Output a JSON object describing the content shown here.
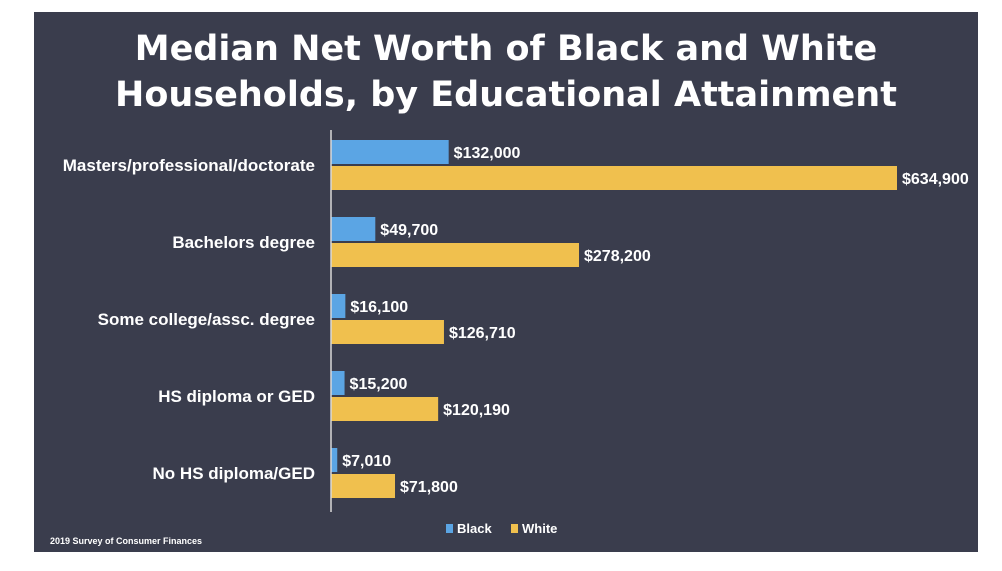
{
  "title_lines": [
    "Median Net Worth of Black and White",
    "Households, by Educational Attainment"
  ],
  "source": "2019 Survey of Consumer Finances",
  "colors": {
    "background": "#3a3d4d",
    "black_series": "#5ba5e4",
    "white_series": "#f0c04e",
    "axis": "#d9d9d9",
    "text": "#ffffff"
  },
  "chart_data": {
    "type": "bar",
    "orientation": "horizontal",
    "title": "Median Net Worth of Black and White Households, by Educational Attainment",
    "categories": [
      "Masters/professional/doctorate",
      "Bachelors degree",
      "Some college/assc. degree",
      "HS diploma or GED",
      "No HS diploma/GED"
    ],
    "series": [
      {
        "name": "Black",
        "values": [
          132000,
          49700,
          16100,
          15200,
          7010
        ],
        "labels": [
          "$132,000",
          "$49,700",
          "$16,100",
          "$15,200",
          "$7,010"
        ]
      },
      {
        "name": "White",
        "values": [
          634900,
          278200,
          126710,
          120190,
          71800
        ],
        "labels": [
          "$634,900",
          "$278,200",
          "$126,710",
          "$120,190",
          "$71,800"
        ]
      }
    ],
    "xlim": [
      0,
      634900
    ],
    "grid": false,
    "legend_position": "bottom"
  }
}
